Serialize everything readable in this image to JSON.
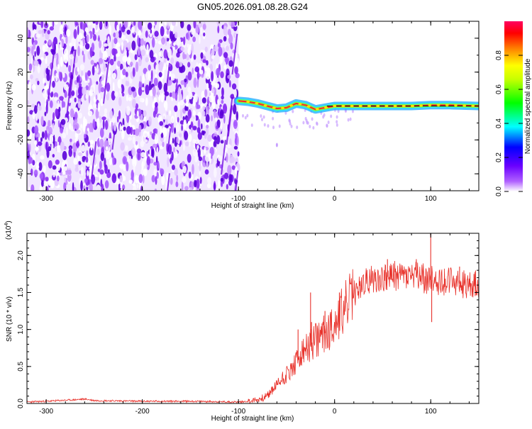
{
  "figure_title": "GN05.2026.091.08.28.G24",
  "chart_data": [
    {
      "type": "heatmap",
      "title": "GN05.2026.091.08.28.G24",
      "xlabel": "Height of straight line (km)",
      "ylabel": "Frequency (Hz)",
      "xlim": [
        -320,
        150
      ],
      "ylim": [
        -50,
        50
      ],
      "x_ticks": [
        -300,
        -200,
        -100,
        0,
        100
      ],
      "y_ticks": [
        -40,
        -20,
        0,
        20,
        40
      ],
      "colorbar": {
        "label": "Normalized spectral amplitude",
        "range": [
          0,
          1
        ],
        "ticks": [
          "0.0",
          "0.2",
          "0.4",
          "0.6",
          "0.8"
        ],
        "tick_values": [
          0,
          0.2,
          0.4,
          0.6,
          0.8
        ],
        "colors": [
          "#ffffff",
          "#8000ff",
          "#0000ff",
          "#00ffff",
          "#00ff00",
          "#ffff00",
          "#ff8000",
          "#ff0000",
          "#ff00ff"
        ]
      },
      "noise_region_x": [
        -320,
        -100
      ],
      "signal_track": {
        "x": [
          -100,
          -90,
          -80,
          -70,
          -60,
          -50,
          -40,
          -30,
          -20,
          -10,
          0,
          20,
          40,
          60,
          80,
          100,
          120,
          150
        ],
        "freq_hz": [
          3,
          2.5,
          1.5,
          0,
          -1.5,
          -1,
          1.5,
          0.5,
          -2,
          -1,
          0,
          0,
          0,
          0,
          0,
          0.5,
          0.5,
          0
        ]
      }
    },
    {
      "type": "line",
      "xlabel": "Height of straight line (km)",
      "ylabel": "SNR (10 * v/v)",
      "y_multiplier": "(x10",
      "y_multiplier_exp": "4",
      "y_multiplier_close": ")",
      "xlim": [
        -320,
        150
      ],
      "ylim": [
        0,
        2.3
      ],
      "x_ticks": [
        -300,
        -200,
        -100,
        0,
        100
      ],
      "y_ticks": [
        "0.0",
        "0.5",
        "1.0",
        "1.5",
        "2.0"
      ],
      "y_tick_values": [
        0,
        0.5,
        1.0,
        1.5,
        2.0
      ],
      "series": [
        {
          "name": "SNR",
          "color": "#e8312a",
          "x": [
            -320,
            -300,
            -270,
            -260,
            -250,
            -200,
            -150,
            -100,
            -90,
            -80,
            -70,
            -65,
            -60,
            -55,
            -50,
            -45,
            -40,
            -35,
            -30,
            -25,
            -20,
            -15,
            -10,
            -5,
            0,
            5,
            10,
            15,
            20,
            25,
            30,
            40,
            50,
            60,
            70,
            80,
            90,
            100,
            110,
            120,
            130,
            140,
            150
          ],
          "y": [
            0.02,
            0.03,
            0.05,
            0.06,
            0.04,
            0.03,
            0.03,
            0.02,
            0.03,
            0.05,
            0.1,
            0.18,
            0.25,
            0.33,
            0.4,
            0.45,
            0.55,
            0.65,
            0.72,
            0.78,
            0.85,
            0.9,
            0.95,
            1.0,
            1.1,
            1.18,
            1.28,
            1.38,
            1.48,
            1.55,
            1.62,
            1.68,
            1.7,
            1.72,
            1.73,
            1.72,
            1.7,
            1.67,
            1.66,
            1.65,
            1.62,
            1.6,
            1.62
          ],
          "spikes": [
            {
              "x": -60,
              "y": 0.3
            },
            {
              "x": -38,
              "y": 1.0
            },
            {
              "x": -25,
              "y": 1.5
            },
            {
              "x": -24,
              "y": 1.1
            },
            {
              "x": -10,
              "y": 1.25
            },
            {
              "x": 5,
              "y": 1.5
            },
            {
              "x": 55,
              "y": 1.95
            },
            {
              "x": 85,
              "y": 1.95
            },
            {
              "x": 100,
              "y": 2.3
            },
            {
              "x": 101,
              "y": 1.1
            },
            {
              "x": 130,
              "y": 1.85
            },
            {
              "x": 145,
              "y": 1.75
            }
          ]
        }
      ]
    }
  ]
}
